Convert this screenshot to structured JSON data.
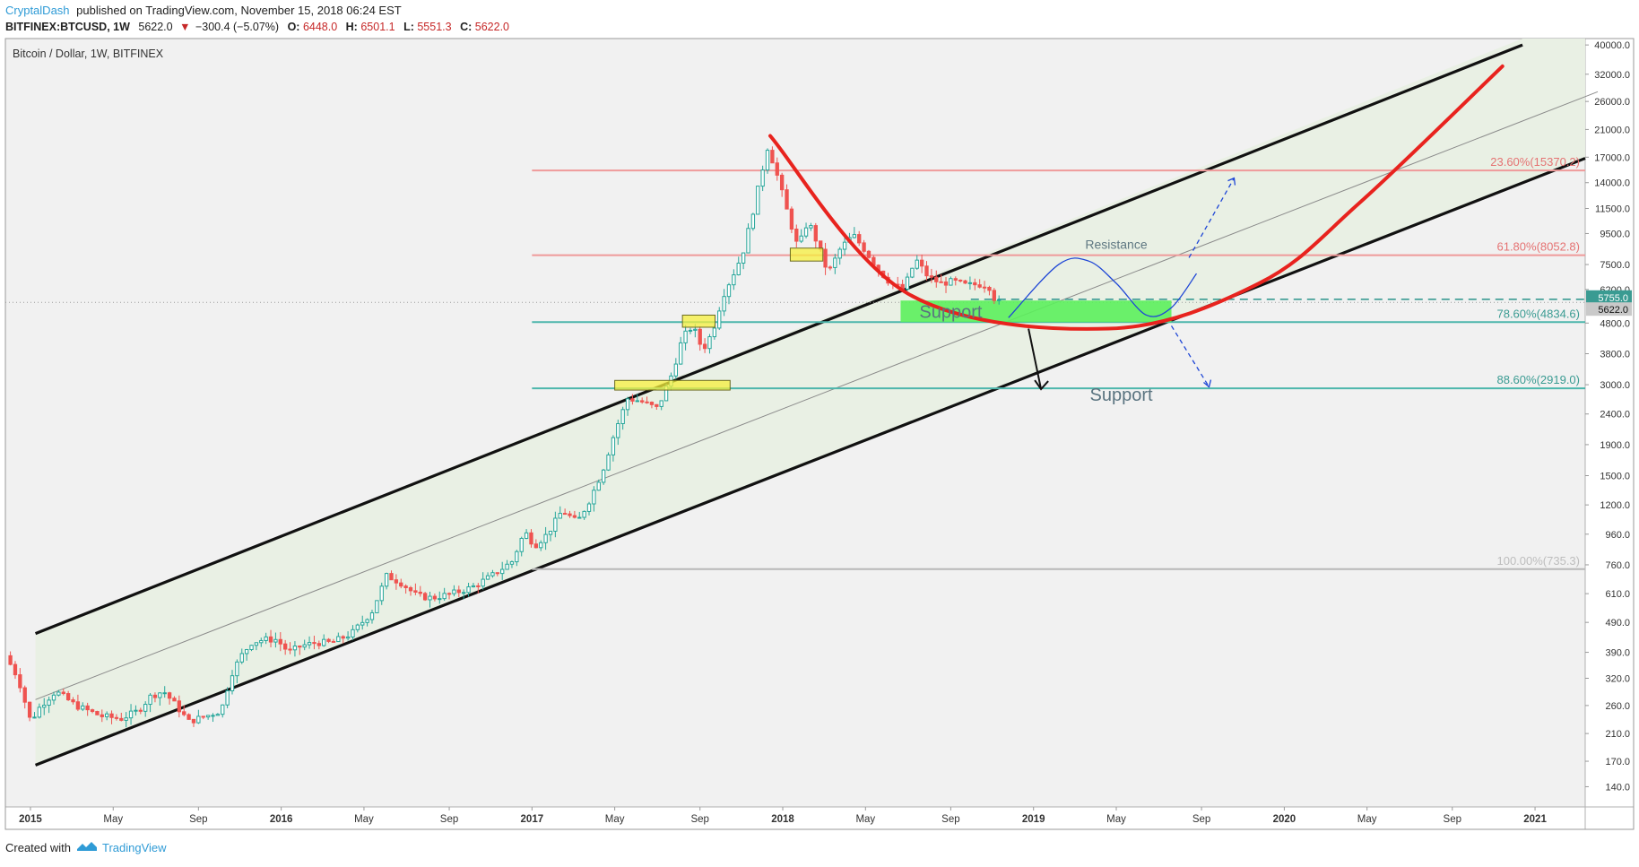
{
  "header": {
    "author": "CryptalDash",
    "published_text": "published on TradingView.com, November 15, 2018 06:24 EST"
  },
  "ticker": {
    "symbol": "BITFINEX:BTCUSD, 1W",
    "last": "5622.0",
    "change": "−300.4 (−5.07%)",
    "open_label": "O:",
    "open_value": "6448.0",
    "high_label": "H:",
    "high_value": "6501.1",
    "low_label": "L:",
    "low_value": "5551.3",
    "close_label": "C:",
    "close_value": "5622.0"
  },
  "chart_title": "Bitcoin / Dollar, 1W, BITFINEX",
  "footer": {
    "created_with": "Created with",
    "brand": "TradingView"
  },
  "colors": {
    "up": "#26a69a",
    "down": "#ef5350",
    "fib_red": "#ef9a9a",
    "fib_teal": "#4db6ac",
    "channel_fill": "#e8efe3",
    "support_zone": "#5cf05c",
    "curve_red": "#e8231e",
    "wave_blue": "#1e46d6"
  },
  "chart_data": {
    "type": "candlestick",
    "title": "Bitcoin / Dollar, 1W, BITFINEX",
    "scale": "log",
    "ylim": [
      120,
      42000
    ],
    "xlim": [
      2014.9,
      2021.2
    ],
    "y_ticks": [
      "40000.0",
      "32000.0",
      "26000.0",
      "21000.0",
      "17000.0",
      "14000.0",
      "11500.0",
      "9500.0",
      "7500.0",
      "6200.0",
      "4800.0",
      "3800.0",
      "3000.0",
      "2400.0",
      "1900.0",
      "1500.0",
      "1200.0",
      "960.0",
      "760.0",
      "610.0",
      "490.0",
      "390.0",
      "320.0",
      "260.0",
      "210.0",
      "170.0",
      "140.0"
    ],
    "x_ticks": [
      {
        "label": "2015",
        "t": 2015.0,
        "bold": true
      },
      {
        "label": "May",
        "t": 2015.33,
        "bold": false
      },
      {
        "label": "Sep",
        "t": 2015.67,
        "bold": false
      },
      {
        "label": "2016",
        "t": 2016.0,
        "bold": true
      },
      {
        "label": "May",
        "t": 2016.33,
        "bold": false
      },
      {
        "label": "Sep",
        "t": 2016.67,
        "bold": false
      },
      {
        "label": "2017",
        "t": 2017.0,
        "bold": true
      },
      {
        "label": "May",
        "t": 2017.33,
        "bold": false
      },
      {
        "label": "Sep",
        "t": 2017.67,
        "bold": false
      },
      {
        "label": "2018",
        "t": 2018.0,
        "bold": true
      },
      {
        "label": "May",
        "t": 2018.33,
        "bold": false
      },
      {
        "label": "Sep",
        "t": 2018.67,
        "bold": false
      },
      {
        "label": "2019",
        "t": 2019.0,
        "bold": true
      },
      {
        "label": "May",
        "t": 2019.33,
        "bold": false
      },
      {
        "label": "Sep",
        "t": 2019.67,
        "bold": false
      },
      {
        "label": "2020",
        "t": 2020.0,
        "bold": true
      },
      {
        "label": "May",
        "t": 2020.33,
        "bold": false
      },
      {
        "label": "Sep",
        "t": 2020.67,
        "bold": false
      },
      {
        "label": "2021",
        "t": 2021.0,
        "bold": true
      }
    ],
    "price_path": [
      [
        2014.92,
        380
      ],
      [
        2014.97,
        320
      ],
      [
        2015.02,
        230
      ],
      [
        2015.06,
        260
      ],
      [
        2015.12,
        290
      ],
      [
        2015.2,
        260
      ],
      [
        2015.3,
        240
      ],
      [
        2015.38,
        235
      ],
      [
        2015.45,
        250
      ],
      [
        2015.5,
        280
      ],
      [
        2015.55,
        290
      ],
      [
        2015.6,
        260
      ],
      [
        2015.65,
        230
      ],
      [
        2015.72,
        240
      ],
      [
        2015.78,
        250
      ],
      [
        2015.82,
        330
      ],
      [
        2015.86,
        380
      ],
      [
        2015.9,
        420
      ],
      [
        2015.95,
        430
      ],
      [
        2016.0,
        430
      ],
      [
        2016.05,
        390
      ],
      [
        2016.1,
        410
      ],
      [
        2016.16,
        420
      ],
      [
        2016.22,
        420
      ],
      [
        2016.3,
        450
      ],
      [
        2016.38,
        530
      ],
      [
        2016.44,
        700
      ],
      [
        2016.5,
        660
      ],
      [
        2016.56,
        600
      ],
      [
        2016.62,
        590
      ],
      [
        2016.7,
        610
      ],
      [
        2016.78,
        640
      ],
      [
        2016.86,
        700
      ],
      [
        2016.94,
        780
      ],
      [
        2016.99,
        980
      ],
      [
        2017.03,
        880
      ],
      [
        2017.08,
        960
      ],
      [
        2017.14,
        1150
      ],
      [
        2017.2,
        1050
      ],
      [
        2017.25,
        1250
      ],
      [
        2017.3,
        1550
      ],
      [
        2017.35,
        2100
      ],
      [
        2017.4,
        2700
      ],
      [
        2017.45,
        2650
      ],
      [
        2017.52,
        2500
      ],
      [
        2017.58,
        3300
      ],
      [
        2017.62,
        4300
      ],
      [
        2017.66,
        4700
      ],
      [
        2017.7,
        3900
      ],
      [
        2017.74,
        4500
      ],
      [
        2017.78,
        5900
      ],
      [
        2017.83,
        7200
      ],
      [
        2017.86,
        8200
      ],
      [
        2017.9,
        11200
      ],
      [
        2017.93,
        14500
      ],
      [
        2017.96,
        18500
      ],
      [
        2018.0,
        14500
      ],
      [
        2018.04,
        11000
      ],
      [
        2018.08,
        8500
      ],
      [
        2018.12,
        10500
      ],
      [
        2018.16,
        8700
      ],
      [
        2018.2,
        7000
      ],
      [
        2018.25,
        8500
      ],
      [
        2018.3,
        9400
      ],
      [
        2018.35,
        8300
      ],
      [
        2018.4,
        7200
      ],
      [
        2018.45,
        6500
      ],
      [
        2018.5,
        6200
      ],
      [
        2018.55,
        7800
      ],
      [
        2018.6,
        6800
      ],
      [
        2018.65,
        6500
      ],
      [
        2018.7,
        6600
      ],
      [
        2018.75,
        6400
      ],
      [
        2018.8,
        6450
      ],
      [
        2018.84,
        6400
      ],
      [
        2018.87,
        5622
      ]
    ],
    "channel": {
      "upper_start": {
        "t": 2015.02,
        "price": 450
      },
      "upper_end": {
        "t": 2020.95,
        "price": 40000
      },
      "lower_start": {
        "t": 2015.02,
        "price": 165
      },
      "lower_end": {
        "t": 2021.25,
        "price": 17500
      },
      "mid_start": {
        "t": 2015.02,
        "price": 272
      },
      "mid_end": {
        "t": 2021.25,
        "price": 28000
      }
    },
    "fib_levels": [
      {
        "label": "23.60%(15370.2)",
        "price": 15370.2,
        "color": "fib_red",
        "t_from": 2017.0
      },
      {
        "label": "61.80%(8052.8)",
        "price": 8052.8,
        "color": "fib_red",
        "t_from": 2017.0
      },
      {
        "label": "78.60%(4834.6)",
        "price": 4834.6,
        "color": "fib_teal",
        "t_from": 2017.0
      },
      {
        "label": "88.60%(2919.0)",
        "price": 2919.0,
        "color": "fib_teal",
        "t_from": 2017.0
      },
      {
        "label": "100.00%(735.3)",
        "price": 735.3,
        "color": "grey",
        "t_from": 2017.0
      }
    ],
    "price_labels": [
      {
        "text": "5755.0",
        "price": 5755.0,
        "style": "teal"
      },
      {
        "text": "5622.0",
        "price": 5622.0,
        "style": "grey"
      }
    ],
    "annotations": [
      {
        "text": "Resistance",
        "t": 2019.33,
        "price": 8450
      },
      {
        "text": "Support",
        "t": 2018.67,
        "price": 5000
      },
      {
        "text": "Support",
        "t": 2019.35,
        "price": 2650
      }
    ],
    "support_zone": {
      "t_from": 2018.47,
      "t_to": 2019.55,
      "price_hi": 5700,
      "price_lo": 4834.6
    },
    "highlight_boxes": [
      {
        "t_from": 2018.03,
        "t_to": 2018.16,
        "price_hi": 8500,
        "price_lo": 7700
      },
      {
        "t_from": 2017.6,
        "t_to": 2017.73,
        "price_hi": 5100,
        "price_lo": 4650
      },
      {
        "t_from": 2017.33,
        "t_to": 2017.79,
        "price_hi": 3100,
        "price_lo": 2880
      }
    ],
    "projection_curve": [
      [
        2017.95,
        20000
      ],
      [
        2018.5,
        6000
      ],
      [
        2019.3,
        4600
      ],
      [
        2019.9,
        6500
      ],
      [
        2020.3,
        12000
      ],
      [
        2020.87,
        34000
      ]
    ],
    "projection_wave": [
      [
        2018.9,
        5000
      ],
      [
        2019.1,
        7500
      ],
      [
        2019.22,
        7700
      ],
      [
        2019.33,
        6500
      ],
      [
        2019.45,
        5100
      ],
      [
        2019.55,
        5400
      ],
      [
        2019.65,
        7000
      ]
    ]
  }
}
